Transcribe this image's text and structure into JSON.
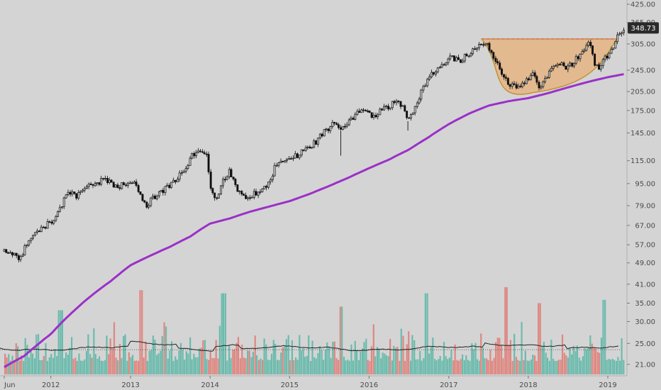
{
  "chart_data": {
    "type": "candlestick",
    "scale": "log",
    "ylim": [
      20,
      430
    ],
    "x_range": [
      "2011-06-01",
      "2019-03-20"
    ],
    "grid": false,
    "colors": {
      "background": "#d4d4d4",
      "candle": "#111111",
      "moving_average": "#9b30c8",
      "volume_up": "#5fb8a8",
      "volume_down": "#e07e78",
      "volume_average": "#222222",
      "cup_fill": "#e8b078",
      "cup_outline": "#c09030",
      "resistance_line": "#e0506a",
      "price_tag": "#2a2a2a"
    },
    "y_ticks": [
      {
        "value": 425,
        "label": "425.00"
      },
      {
        "value": 365,
        "label": "365.00"
      },
      {
        "value": 305,
        "label": "305.00"
      },
      {
        "value": 245,
        "label": "245.00"
      },
      {
        "value": 205,
        "label": "205.00"
      },
      {
        "value": 175,
        "label": "175.00"
      },
      {
        "value": 145,
        "label": "145.00"
      },
      {
        "value": 115,
        "label": "115.00"
      },
      {
        "value": 95,
        "label": "95.00"
      },
      {
        "value": 79,
        "label": "79.00"
      },
      {
        "value": 67,
        "label": "67.00"
      },
      {
        "value": 57,
        "label": "57.00"
      },
      {
        "value": 49,
        "label": "49.00"
      },
      {
        "value": 41,
        "label": "41.00"
      },
      {
        "value": 35,
        "label": "35.00"
      },
      {
        "value": 30,
        "label": "30.00"
      },
      {
        "value": 25,
        "label": "25.00"
      },
      {
        "value": 21,
        "label": "21.00"
      }
    ],
    "x_ticks": [
      {
        "date": "2011-06-01",
        "label": "Jun"
      },
      {
        "date": "2012-01-01",
        "label": "2012"
      },
      {
        "date": "2013-01-01",
        "label": "2013"
      },
      {
        "date": "2014-01-01",
        "label": "2014"
      },
      {
        "date": "2015-01-01",
        "label": "2015"
      },
      {
        "date": "2016-01-01",
        "label": "2016"
      },
      {
        "date": "2017-01-01",
        "label": "2017"
      },
      {
        "date": "2018-01-01",
        "label": "2018"
      },
      {
        "date": "2019-01-01",
        "label": "2019"
      }
    ],
    "last_price": {
      "value": 348.73,
      "label": "348.73"
    },
    "resistance_level": 318,
    "price_path": [
      [
        "2011-06-01",
        54
      ],
      [
        "2011-07-15",
        52
      ],
      [
        "2011-08-20",
        51
      ],
      [
        "2011-09-20",
        60
      ],
      [
        "2011-10-20",
        63
      ],
      [
        "2011-12-01",
        66
      ],
      [
        "2012-01-15",
        70
      ],
      [
        "2012-02-20",
        80
      ],
      [
        "2012-03-25",
        88
      ],
      [
        "2012-05-01",
        86
      ],
      [
        "2012-06-15",
        92
      ],
      [
        "2012-08-01",
        96
      ],
      [
        "2012-09-15",
        98
      ],
      [
        "2012-10-20",
        92
      ],
      [
        "2012-12-01",
        94
      ],
      [
        "2013-01-15",
        96
      ],
      [
        "2013-02-15",
        88
      ],
      [
        "2013-03-10",
        78
      ],
      [
        "2013-04-01",
        82
      ],
      [
        "2013-05-01",
        86
      ],
      [
        "2013-06-15",
        92
      ],
      [
        "2013-08-01",
        98
      ],
      [
        "2013-09-10",
        108
      ],
      [
        "2013-10-10",
        120
      ],
      [
        "2013-11-10",
        126
      ],
      [
        "2013-12-15",
        124
      ],
      [
        "2014-01-01",
        90
      ],
      [
        "2014-02-01",
        84
      ],
      [
        "2014-03-01",
        96
      ],
      [
        "2014-04-01",
        106
      ],
      [
        "2014-05-01",
        92
      ],
      [
        "2014-06-01",
        84
      ],
      [
        "2014-07-01",
        86
      ],
      [
        "2014-08-01",
        88
      ],
      [
        "2014-09-01",
        90
      ],
      [
        "2014-10-01",
        96
      ],
      [
        "2014-11-01",
        112
      ],
      [
        "2014-12-15",
        116
      ],
      [
        "2015-02-01",
        120
      ],
      [
        "2015-03-15",
        126
      ],
      [
        "2015-05-01",
        134
      ],
      [
        "2015-06-15",
        148
      ],
      [
        "2015-07-20",
        156
      ],
      [
        "2015-08-24",
        148
      ],
      [
        "2015-10-01",
        158
      ],
      [
        "2015-11-15",
        172
      ],
      [
        "2015-12-15",
        176
      ],
      [
        "2016-01-20",
        166
      ],
      [
        "2016-02-20",
        176
      ],
      [
        "2016-04-01",
        182
      ],
      [
        "2016-05-01",
        188
      ],
      [
        "2016-06-01",
        184
      ],
      [
        "2016-06-27",
        160
      ],
      [
        "2016-07-20",
        170
      ],
      [
        "2016-08-20",
        198
      ],
      [
        "2016-10-01",
        230
      ],
      [
        "2016-11-10",
        248
      ],
      [
        "2016-12-10",
        262
      ],
      [
        "2017-01-15",
        272
      ],
      [
        "2017-02-15",
        264
      ],
      [
        "2017-03-15",
        274
      ],
      [
        "2017-04-15",
        286
      ],
      [
        "2017-05-15",
        302
      ],
      [
        "2017-06-15",
        312
      ],
      [
        "2017-07-10",
        290
      ],
      [
        "2017-08-10",
        258
      ],
      [
        "2017-09-10",
        232
      ],
      [
        "2017-10-15",
        216
      ],
      [
        "2017-11-15",
        210
      ],
      [
        "2017-12-20",
        222
      ],
      [
        "2018-01-20",
        236
      ],
      [
        "2018-02-20",
        214
      ],
      [
        "2018-03-20",
        224
      ],
      [
        "2018-04-20",
        256
      ],
      [
        "2018-05-20",
        262
      ],
      [
        "2018-06-20",
        246
      ],
      [
        "2018-07-20",
        258
      ],
      [
        "2018-08-20",
        276
      ],
      [
        "2018-09-20",
        292
      ],
      [
        "2018-10-10",
        312
      ],
      [
        "2018-10-28",
        262
      ],
      [
        "2018-11-20",
        246
      ],
      [
        "2018-12-20",
        270
      ],
      [
        "2019-01-20",
        290
      ],
      [
        "2019-02-10",
        318
      ],
      [
        "2019-03-01",
        338
      ],
      [
        "2019-03-15",
        348.73
      ]
    ],
    "moving_average_path": [
      [
        "2011-06-01",
        20.5
      ],
      [
        "2011-09-01",
        22.5
      ],
      [
        "2012-01-01",
        27
      ],
      [
        "2012-04-01",
        32
      ],
      [
        "2012-07-01",
        37
      ],
      [
        "2012-10-01",
        42
      ],
      [
        "2013-01-01",
        48
      ],
      [
        "2013-04-01",
        52
      ],
      [
        "2013-07-01",
        56
      ],
      [
        "2013-10-01",
        61
      ],
      [
        "2014-01-01",
        68
      ],
      [
        "2014-04-01",
        71
      ],
      [
        "2014-07-01",
        75
      ],
      [
        "2014-10-01",
        78.5
      ],
      [
        "2015-01-01",
        82
      ],
      [
        "2015-04-01",
        87
      ],
      [
        "2015-07-01",
        93
      ],
      [
        "2015-10-01",
        100
      ],
      [
        "2016-01-01",
        108
      ],
      [
        "2016-04-01",
        116
      ],
      [
        "2016-07-01",
        126
      ],
      [
        "2016-10-01",
        140
      ],
      [
        "2017-01-01",
        156
      ],
      [
        "2017-04-01",
        170
      ],
      [
        "2017-07-01",
        182
      ],
      [
        "2017-10-01",
        189
      ],
      [
        "2018-01-01",
        194
      ],
      [
        "2018-04-01",
        202
      ],
      [
        "2018-07-01",
        212
      ],
      [
        "2018-10-01",
        222
      ],
      [
        "2019-01-01",
        231
      ],
      [
        "2019-03-15",
        237
      ]
    ],
    "cup_pattern": {
      "start": [
        "2017-06-01",
        318
      ],
      "end": [
        "2019-02-10",
        318
      ],
      "bottom": [
        "2018-01-20",
        203
      ]
    },
    "volume_average_level": 24,
    "volume_spikes": [
      [
        "2013-02-15",
        39
      ],
      [
        "2014-03-01",
        38
      ],
      [
        "2016-09-15",
        38
      ],
      [
        "2017-09-15",
        40
      ],
      [
        "2018-02-15",
        35
      ],
      [
        "2018-12-10",
        36
      ],
      [
        "2012-02-10",
        33
      ],
      [
        "2015-08-24",
        34
      ]
    ]
  }
}
